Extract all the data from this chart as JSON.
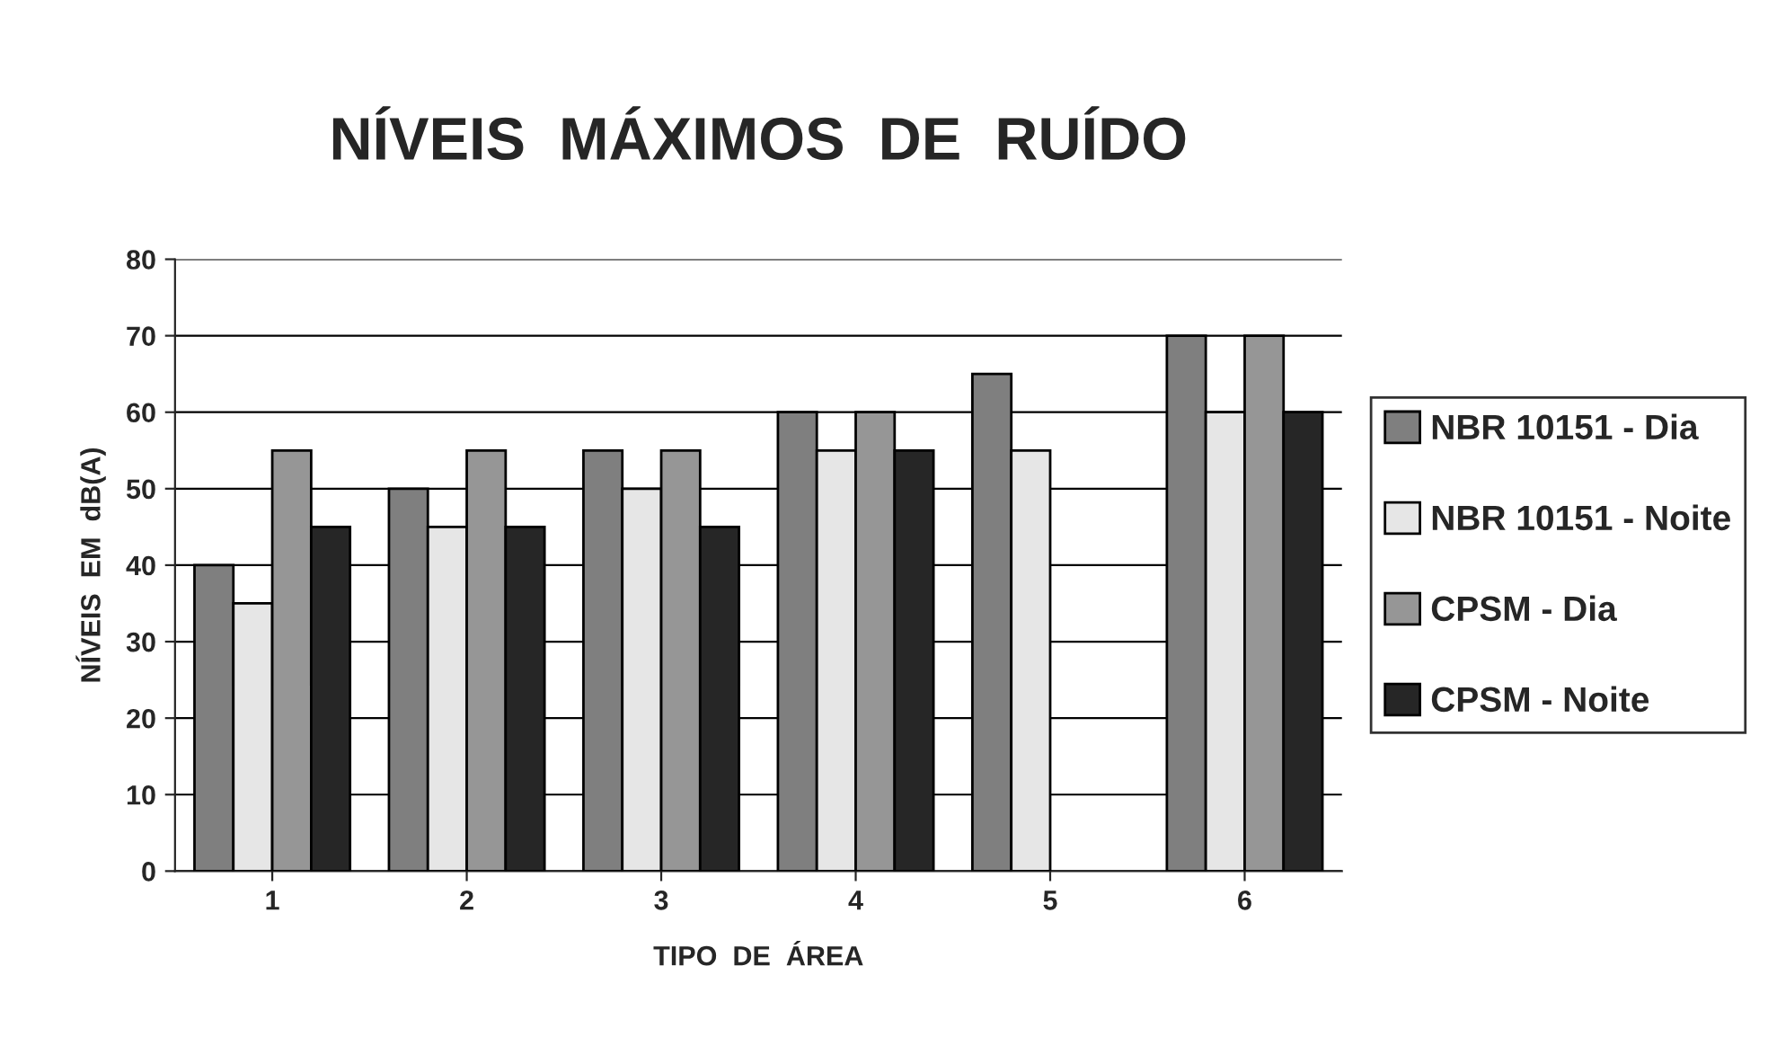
{
  "chart_data": {
    "type": "bar",
    "title": "NÍVEIS  MÁXIMOS  DE  RUÍDO",
    "xlabel": "TIPO  DE  ÁREA",
    "ylabel": "NÍVEIS  EM  dB(A)",
    "categories": [
      "1",
      "2",
      "3",
      "4",
      "5",
      "6"
    ],
    "series": [
      {
        "name": "NBR 10151 - Dia",
        "color": "#7f7f7f",
        "values": [
          40,
          50,
          55,
          60,
          65,
          70
        ]
      },
      {
        "name": "NBR 10151 - Noite",
        "color": "#e6e6e6",
        "values": [
          35,
          45,
          50,
          55,
          55,
          60
        ]
      },
      {
        "name": "CPSM - Dia",
        "color": "#969696",
        "values": [
          55,
          55,
          55,
          60,
          null,
          70
        ]
      },
      {
        "name": "CPSM - Noite",
        "color": "#262626",
        "values": [
          45,
          45,
          45,
          55,
          null,
          60
        ]
      }
    ],
    "ylim": [
      0,
      80
    ],
    "yticks": [
      0,
      10,
      20,
      30,
      40,
      50,
      60,
      70,
      80
    ],
    "grid": "y",
    "legend": "right"
  }
}
